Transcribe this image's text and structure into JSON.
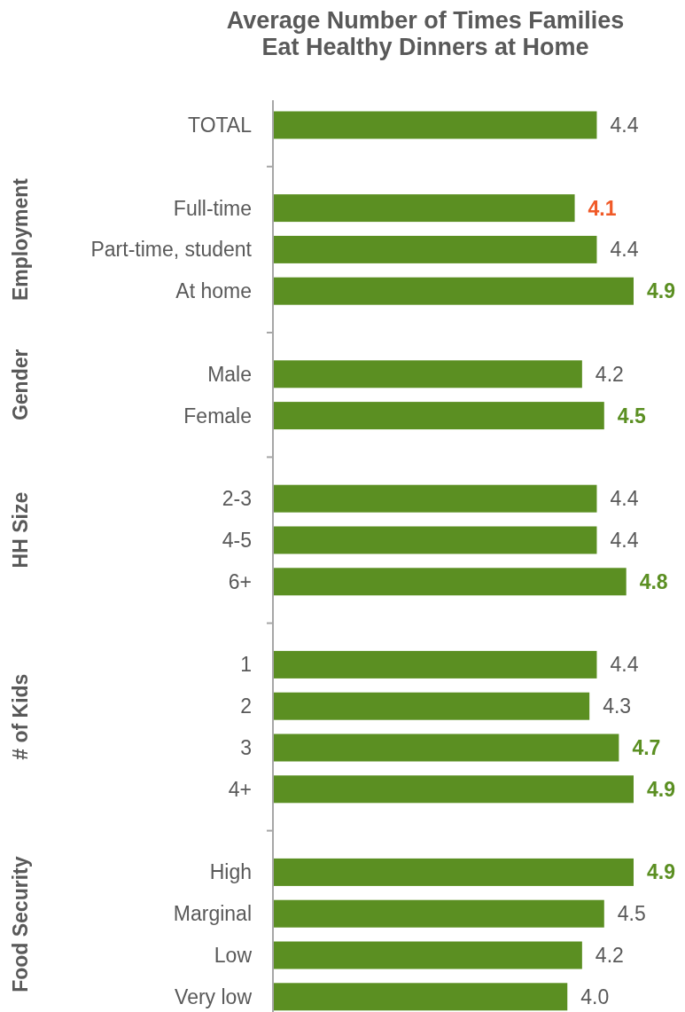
{
  "chart_data": {
    "type": "bar",
    "orientation": "horizontal",
    "title": "Average Number of Times Families Eat Healthy Dinners at Home",
    "categories": [
      "TOTAL",
      null,
      "Full-time",
      "Part-time, student",
      "At home",
      null,
      "Male",
      "Female",
      null,
      "2-3",
      "4-5",
      "6+",
      null,
      "1",
      "2",
      "3",
      "4+",
      null,
      "High",
      "Marginal",
      "Low",
      "Very low"
    ],
    "values": [
      4.4,
      null,
      4.1,
      4.4,
      4.9,
      null,
      4.2,
      4.5,
      null,
      4.4,
      4.4,
      4.8,
      null,
      4.4,
      4.3,
      4.7,
      4.9,
      null,
      4.9,
      4.5,
      4.2,
      4.0
    ],
    "value_labels": [
      "4.4",
      null,
      "4.1",
      "4.4",
      "4.9",
      null,
      "4.2",
      "4.5",
      null,
      "4.4",
      "4.4",
      "4.8",
      null,
      "4.4",
      "4.3",
      "4.7",
      "4.9",
      null,
      "4.9",
      "4.5",
      "4.2",
      "4.0"
    ],
    "color": "#5b8f22",
    "annotations": [
      "Employment",
      "Gender",
      "HH Size",
      "# of Kids",
      "Food Security"
    ]
  }
}
